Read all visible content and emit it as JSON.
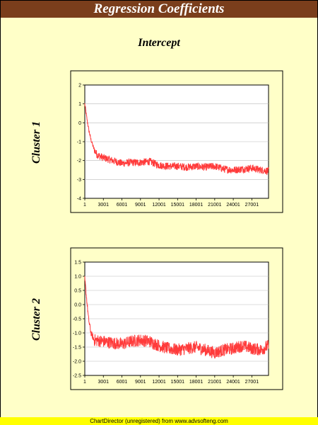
{
  "header": {
    "title": "Regression Coefficients"
  },
  "column_title": "Intercept",
  "footer": {
    "text": "ChartDirector (unregistered) from www.advsofteng.com"
  },
  "colors": {
    "title_bg": "#7a3e1c",
    "page_bg": "#ffffc8",
    "series": "#ff3b3b",
    "footer_bg": "#ffff00"
  },
  "chart_data": [
    {
      "type": "line",
      "row_label": "Cluster 1",
      "x_ticks": [
        "1",
        "3001",
        "6001",
        "9001",
        "12001",
        "15001",
        "18001",
        "21001",
        "24001",
        "27001"
      ],
      "y_ticks": [
        "2",
        "1",
        "0",
        "-1",
        "-2",
        "-3",
        "-4"
      ],
      "ylim": [
        -4,
        2
      ],
      "xlim": [
        1,
        29700
      ],
      "grid": true,
      "series": [
        {
          "color": "#ff3b3b",
          "points": [
            [
              1,
              1.0
            ],
            [
              300,
              0.3
            ],
            [
              600,
              -0.3
            ],
            [
              1000,
              -0.9
            ],
            [
              1500,
              -1.4
            ],
            [
              2000,
              -1.7
            ],
            [
              3000,
              -1.85
            ],
            [
              4500,
              -2.0
            ],
            [
              6000,
              -2.15
            ],
            [
              7500,
              -2.1
            ],
            [
              9000,
              -2.1
            ],
            [
              10500,
              -2.05
            ],
            [
              12000,
              -2.25
            ],
            [
              13500,
              -2.3
            ],
            [
              15000,
              -2.3
            ],
            [
              16500,
              -2.35
            ],
            [
              18000,
              -2.3
            ],
            [
              19500,
              -2.35
            ],
            [
              21000,
              -2.3
            ],
            [
              22500,
              -2.45
            ],
            [
              24000,
              -2.5
            ],
            [
              25500,
              -2.45
            ],
            [
              27000,
              -2.4
            ],
            [
              28500,
              -2.5
            ],
            [
              29700,
              -2.55
            ]
          ],
          "noise": 0.2
        }
      ]
    },
    {
      "type": "line",
      "row_label": "Cluster 2",
      "x_ticks": [
        "1",
        "3001",
        "6001",
        "9001",
        "12001",
        "15001",
        "18001",
        "21001",
        "24001",
        "27001"
      ],
      "y_ticks": [
        "1.5",
        "1.0",
        "0.5",
        "0.0",
        "-0.5",
        "-1.0",
        "-1.5",
        "-2.0",
        "-2.5"
      ],
      "ylim": [
        -2.5,
        1.5
      ],
      "xlim": [
        1,
        29700
      ],
      "grid": true,
      "series": [
        {
          "color": "#ff3b3b",
          "points": [
            [
              1,
              0.9
            ],
            [
              300,
              0.2
            ],
            [
              600,
              -0.5
            ],
            [
              1000,
              -1.0
            ],
            [
              1500,
              -1.25
            ],
            [
              3000,
              -1.3
            ],
            [
              4500,
              -1.35
            ],
            [
              6000,
              -1.4
            ],
            [
              7500,
              -1.3
            ],
            [
              9000,
              -1.25
            ],
            [
              10500,
              -1.3
            ],
            [
              12000,
              -1.45
            ],
            [
              13500,
              -1.55
            ],
            [
              15000,
              -1.6
            ],
            [
              16500,
              -1.55
            ],
            [
              18000,
              -1.5
            ],
            [
              19500,
              -1.6
            ],
            [
              21000,
              -1.7
            ],
            [
              22500,
              -1.6
            ],
            [
              24000,
              -1.55
            ],
            [
              25500,
              -1.45
            ],
            [
              27000,
              -1.55
            ],
            [
              28500,
              -1.6
            ],
            [
              29700,
              -1.45
            ]
          ],
          "noise": 0.22
        }
      ]
    }
  ]
}
